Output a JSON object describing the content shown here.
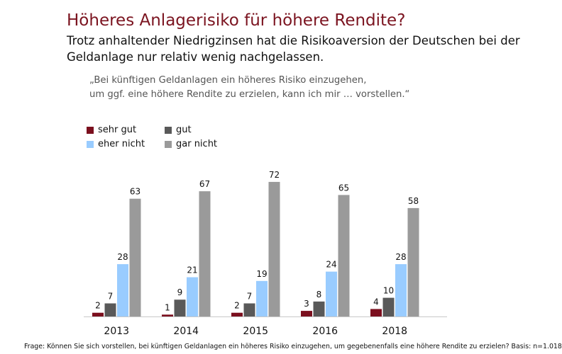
{
  "header": {
    "title": "Höheres Anlagerisiko für höhere Rendite?",
    "subtitle": "Trotz anhaltender Niedrigzinsen hat die Risikoaversion der Deutschen bei der Geldanlage nur relativ wenig nachgelassen.",
    "quote_line1": "„Bei künftigen Geldanlagen ein höheres Risiko einzugehen,",
    "quote_line2": "um ggf. eine höhere Rendite zu erzielen, kann ich mir … vorstellen.“"
  },
  "footnote": "Frage: Können Sie sich vorstellen, bei künftigen Geldanlagen ein höheres Risiko einzugehen, um gegebenenfalls eine höhere Rendite zu erzielen? Basis: n=1.018",
  "chart_data": {
    "type": "bar",
    "categories": [
      "2013",
      "2014",
      "2015",
      "2016",
      "2018"
    ],
    "series": [
      {
        "name": "sehr gut",
        "color": "#7b0f1e",
        "values": [
          2,
          1,
          2,
          3,
          4
        ]
      },
      {
        "name": "gut",
        "color": "#595959",
        "values": [
          7,
          9,
          7,
          8,
          10
        ]
      },
      {
        "name": "eher nicht",
        "color": "#99ccff",
        "values": [
          28,
          21,
          19,
          24,
          28
        ]
      },
      {
        "name": "gar nicht",
        "color": "#9a9a9a",
        "values": [
          63,
          67,
          72,
          65,
          58
        ]
      }
    ],
    "title": "",
    "xlabel": "",
    "ylabel": "",
    "ylim": [
      0,
      72
    ],
    "grid": false,
    "legend_position": "top-left",
    "data_labels": true
  }
}
